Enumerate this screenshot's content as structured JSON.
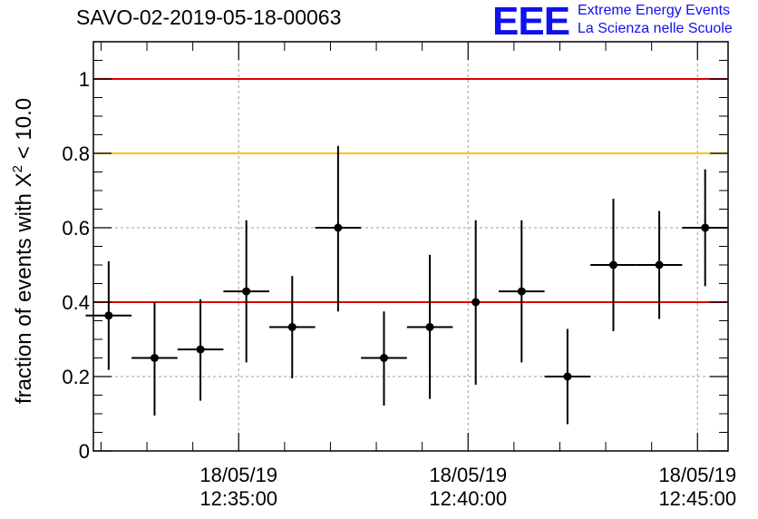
{
  "header": {
    "title": "SAVO-02-2019-05-18-00063",
    "logo_mark": "EEE",
    "logo_line1": "Extreme Energy Events",
    "logo_line2": "La Scienza nelle Scuole"
  },
  "colors": {
    "points": "#000000",
    "grid": "#9e9e9e",
    "red_line": "#e00000",
    "yellow_line": "#ffc400",
    "logo": "#1010f0"
  },
  "chart_data": {
    "type": "scatter",
    "title": "SAVO-02-2019-05-18-00063",
    "ylabel": "fraction of events with X² < 10.0",
    "ylabel_parts": {
      "pre": "fraction of events with X",
      "sup": "2",
      "post": " < 10.0"
    },
    "xlabel": "",
    "ylim": [
      0,
      1.1
    ],
    "yticks": [
      0,
      0.2,
      0.4,
      0.6,
      0.8,
      1
    ],
    "ytick_labels": [
      "0",
      "0.2",
      "0.4",
      "0.6",
      "0.8",
      "1"
    ],
    "xlim": [
      "12:31:50",
      "12:45:40"
    ],
    "xticks": [
      {
        "time": "12:35:00",
        "date": "18/05/19"
      },
      {
        "time": "12:40:00",
        "date": "18/05/19"
      },
      {
        "time": "12:45:00",
        "date": "18/05/19"
      }
    ],
    "x_minor_tick_step_seconds": 60,
    "grid": true,
    "reference_lines": [
      {
        "y": 1.0,
        "color": "#e00000"
      },
      {
        "y": 0.8,
        "color": "#ffc400"
      },
      {
        "y": 0.4,
        "color": "#e00000"
      }
    ],
    "points": [
      {
        "x": "12:32:10",
        "y": 0.364,
        "x_err_s": 30,
        "y_lo": 0.218,
        "y_hi": 0.51
      },
      {
        "x": "12:33:10",
        "y": 0.25,
        "x_err_s": 30,
        "y_lo": 0.095,
        "y_hi": 0.4
      },
      {
        "x": "12:34:10",
        "y": 0.273,
        "x_err_s": 30,
        "y_lo": 0.135,
        "y_hi": 0.408
      },
      {
        "x": "12:35:10",
        "y": 0.429,
        "x_err_s": 30,
        "y_lo": 0.238,
        "y_hi": 0.62
      },
      {
        "x": "12:36:10",
        "y": 0.333,
        "x_err_s": 30,
        "y_lo": 0.195,
        "y_hi": 0.47
      },
      {
        "x": "12:37:10",
        "y": 0.6,
        "x_err_s": 30,
        "y_lo": 0.375,
        "y_hi": 0.82
      },
      {
        "x": "12:38:10",
        "y": 0.25,
        "x_err_s": 30,
        "y_lo": 0.122,
        "y_hi": 0.375
      },
      {
        "x": "12:39:10",
        "y": 0.333,
        "x_err_s": 30,
        "y_lo": 0.14,
        "y_hi": 0.527
      },
      {
        "x": "12:40:10",
        "y": 0.4,
        "x_err_s": 0,
        "y_lo": 0.178,
        "y_hi": 0.62
      },
      {
        "x": "12:41:10",
        "y": 0.429,
        "x_err_s": 30,
        "y_lo": 0.238,
        "y_hi": 0.62
      },
      {
        "x": "12:42:10",
        "y": 0.2,
        "x_err_s": 30,
        "y_lo": 0.072,
        "y_hi": 0.328
      },
      {
        "x": "12:43:10",
        "y": 0.5,
        "x_err_s": 30,
        "y_lo": 0.322,
        "y_hi": 0.678
      },
      {
        "x": "12:44:10",
        "y": 0.5,
        "x_err_s": 30,
        "y_lo": 0.355,
        "y_hi": 0.645
      },
      {
        "x": "12:45:10",
        "y": 0.6,
        "x_err_s": 30,
        "y_lo": 0.443,
        "y_hi": 0.757
      }
    ]
  }
}
